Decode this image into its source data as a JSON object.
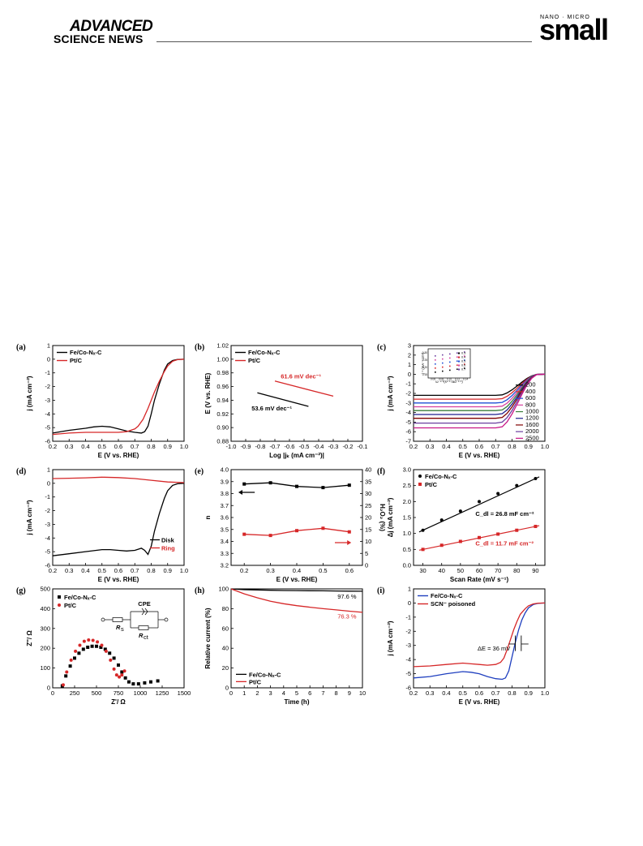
{
  "header": {
    "journal_line1": "ADVANCED",
    "journal_line2": "SCIENCE NEWS",
    "nano_micro": "NANO · MICRO",
    "small": "small"
  },
  "chart_data": [
    {
      "panel": "(a)",
      "type": "line",
      "xlabel": "E (V vs. RHE)",
      "ylabel": "j (mA cm⁻²)",
      "xlim": [
        0.2,
        1.0
      ],
      "ylim": [
        -6,
        1
      ],
      "xticks": [
        "0.2",
        "0.3",
        "0.4",
        "0.5",
        "0.6",
        "0.7",
        "0.8",
        "0.9",
        "1.0"
      ],
      "yticks": [
        "-6",
        "-5",
        "-4",
        "-3",
        "-2",
        "-1",
        "0",
        "1"
      ],
      "legend": [
        "Fe/Co-Nₓ-C",
        "Pt/C"
      ],
      "series": [
        {
          "name": "Fe/Co-Nₓ-C",
          "color": "#000000",
          "x": [
            0.2,
            0.3,
            0.4,
            0.45,
            0.5,
            0.55,
            0.6,
            0.65,
            0.7,
            0.74,
            0.76,
            0.78,
            0.8,
            0.82,
            0.85,
            0.88,
            0.9,
            0.93,
            0.96,
            1.0
          ],
          "y": [
            -5.4,
            -5.2,
            -5.05,
            -4.95,
            -4.9,
            -4.95,
            -5.1,
            -5.25,
            -5.35,
            -5.4,
            -5.3,
            -4.9,
            -4.0,
            -3.0,
            -1.8,
            -0.8,
            -0.35,
            -0.1,
            -0.02,
            0
          ]
        },
        {
          "name": "Pt/C",
          "color": "#d62728",
          "x": [
            0.2,
            0.3,
            0.4,
            0.5,
            0.6,
            0.65,
            0.7,
            0.72,
            0.75,
            0.78,
            0.8,
            0.82,
            0.85,
            0.88,
            0.9,
            0.93,
            0.96,
            1.0
          ],
          "y": [
            -5.5,
            -5.4,
            -5.35,
            -5.35,
            -5.35,
            -5.3,
            -5.1,
            -4.9,
            -4.4,
            -3.6,
            -3.0,
            -2.4,
            -1.6,
            -0.9,
            -0.5,
            -0.15,
            -0.03,
            0
          ]
        }
      ]
    },
    {
      "panel": "(b)",
      "type": "line",
      "xlabel": "Log |jₖ (mA cm⁻²)|",
      "ylabel": "E (V vs. RHE)",
      "xlim": [
        -1.0,
        -0.1
      ],
      "ylim": [
        0.88,
        1.02
      ],
      "xticks": [
        "-1.0",
        "-0.9",
        "-0.8",
        "-0.7",
        "-0.6",
        "-0.5",
        "-0.4",
        "-0.3",
        "-0.2",
        "-0.1"
      ],
      "yticks": [
        "0.88",
        "0.90",
        "0.92",
        "0.94",
        "0.96",
        "0.98",
        "1.00",
        "1.02"
      ],
      "legend": [
        "Fe/Co-Nₓ-C",
        "Pt/C"
      ],
      "annotations": [
        "61.6 mV dec⁻¹",
        "53.6 mV dec⁻¹"
      ],
      "series": [
        {
          "name": "Fe/Co-Nₓ-C",
          "color": "#000000",
          "x": [
            -0.82,
            -0.47
          ],
          "y": [
            0.951,
            0.931
          ]
        },
        {
          "name": "Pt/C",
          "color": "#d62728",
          "x": [
            -0.7,
            -0.3
          ],
          "y": [
            0.968,
            0.946
          ]
        }
      ]
    },
    {
      "panel": "(c)",
      "type": "line",
      "xlabel": "E (V vs. RHE)",
      "ylabel": "j (mA cm⁻²)",
      "xlim": [
        0.2,
        1.0
      ],
      "ylim": [
        -7,
        3
      ],
      "xticks": [
        "0.2",
        "0.3",
        "0.4",
        "0.5",
        "0.6",
        "0.7",
        "0.8",
        "0.9",
        "1.0"
      ],
      "yticks": [
        "-7",
        "-6",
        "-5",
        "-4",
        "-3",
        "-2",
        "-1",
        "0",
        "1",
        "2",
        "3"
      ],
      "legend": [
        "400",
        "600",
        "800",
        "1000",
        "1200",
        "1600",
        "2000",
        "2500"
      ],
      "legend_top": "200",
      "series_plateaus": [
        -2.2,
        -2.6,
        -3.0,
        -3.4,
        -3.8,
        -4.2,
        -4.6,
        -5.1,
        -5.6
      ],
      "series_colors": [
        "#000000",
        "#d62728",
        "#1f4fd6",
        "#d6409f",
        "#3a7d3a",
        "#1f1f8f",
        "#800000",
        "#6b3fa0",
        "#c71585"
      ],
      "inset": {
        "xlabel": "ω⁻¹ᐟ²(s¹ᐟ² rad⁻¹ᐟ²)",
        "ylabel": "j⁻¹ (mA⁻¹ cm²)",
        "legend": [
          "0.3",
          "0.4",
          "0.5",
          "0.6",
          "0.7"
        ],
        "xticks": [
          "0.06",
          "0.08",
          "0.10",
          "0.12",
          "0.14"
        ],
        "yticks": [
          "0.15",
          "0.20",
          "0.25",
          "0.30"
        ]
      }
    },
    {
      "panel": "(d)",
      "type": "line",
      "xlabel": "E (V vs. RHE)",
      "ylabel": "j (mA cm⁻²)",
      "xlim": [
        0.2,
        1.0
      ],
      "ylim": [
        -6,
        1
      ],
      "xticks": [
        "0.2",
        "0.3",
        "0.4",
        "0.5",
        "0.6",
        "0.7",
        "0.8",
        "0.9",
        "1.0"
      ],
      "yticks": [
        "-6",
        "-5",
        "-4",
        "-3",
        "-2",
        "-1",
        "0",
        "1"
      ],
      "legend": [
        "Disk",
        "Ring"
      ],
      "series": [
        {
          "name": "Disk",
          "color": "#000000",
          "x": [
            0.2,
            0.3,
            0.4,
            0.5,
            0.55,
            0.6,
            0.65,
            0.7,
            0.74,
            0.76,
            0.78,
            0.8,
            0.82,
            0.85,
            0.88,
            0.9,
            0.93,
            0.96,
            1.0
          ],
          "y": [
            -5.3,
            -5.15,
            -5.0,
            -4.85,
            -4.85,
            -4.9,
            -4.95,
            -4.9,
            -4.75,
            -4.9,
            -5.2,
            -4.6,
            -3.5,
            -2.2,
            -1.1,
            -0.55,
            -0.15,
            -0.03,
            0
          ]
        },
        {
          "name": "Ring",
          "color": "#d62728",
          "x": [
            0.2,
            0.3,
            0.4,
            0.5,
            0.6,
            0.7,
            0.8,
            0.9,
            1.0
          ],
          "y": [
            0.35,
            0.37,
            0.4,
            0.45,
            0.42,
            0.35,
            0.22,
            0.1,
            0.05
          ]
        }
      ]
    },
    {
      "panel": "(e)",
      "type": "line",
      "xlabel": "E (V vs. RHE)",
      "ylabel": "n",
      "ylabel_right": "H₂O₂ (%)",
      "xlim": [
        0.15,
        0.65
      ],
      "ylim": [
        3.2,
        4.0
      ],
      "ylim_right": [
        0,
        40
      ],
      "xticks": [
        "0.2",
        "0.3",
        "0.4",
        "0.5",
        "0.6"
      ],
      "yticks": [
        "3.2",
        "3.3",
        "3.4",
        "3.5",
        "3.6",
        "3.7",
        "3.8",
        "3.9",
        "4.0"
      ],
      "yticks_right": [
        "0",
        "5",
        "10",
        "15",
        "20",
        "25",
        "30",
        "35",
        "40"
      ],
      "series": [
        {
          "name": "n",
          "color": "#000000",
          "x": [
            0.2,
            0.3,
            0.4,
            0.5,
            0.6
          ],
          "y": [
            3.88,
            3.89,
            3.86,
            3.85,
            3.87
          ]
        },
        {
          "name": "H2O2",
          "color": "#d62728",
          "axis": "right",
          "x": [
            0.2,
            0.3,
            0.4,
            0.5,
            0.6
          ],
          "y": [
            13.0,
            12.5,
            14.5,
            15.5,
            14.0
          ]
        }
      ]
    },
    {
      "panel": "(f)",
      "type": "scatter",
      "xlabel": "Scan Rate (mV s⁻¹)",
      "ylabel": "Δj (mA cm⁻²)",
      "xlim": [
        25,
        95
      ],
      "ylim": [
        0.0,
        3.0
      ],
      "xticks": [
        "30",
        "40",
        "50",
        "60",
        "70",
        "80",
        "90"
      ],
      "yticks": [
        "0.0",
        "0.5",
        "1.0",
        "1.5",
        "2.0",
        "2.5",
        "3.0"
      ],
      "legend": [
        "Fe/Co-Nₓ-C",
        "Pt/C"
      ],
      "annotations": [
        "C_dl = 26.8 mF cm⁻²",
        "C_dl = 11.7 mF cm⁻²"
      ],
      "series": [
        {
          "name": "Fe/Co-Nₓ-C",
          "color": "#000000",
          "x": [
            30,
            40,
            50,
            60,
            70,
            80,
            90
          ],
          "y": [
            1.1,
            1.42,
            1.7,
            2.0,
            2.25,
            2.5,
            2.72
          ]
        },
        {
          "name": "Pt/C",
          "color": "#d62728",
          "x": [
            30,
            40,
            50,
            60,
            70,
            80,
            90
          ],
          "y": [
            0.5,
            0.63,
            0.75,
            0.87,
            0.98,
            1.1,
            1.22
          ]
        }
      ]
    },
    {
      "panel": "(g)",
      "type": "scatter",
      "xlabel": "Z'/ Ω",
      "ylabel": "Z''/ Ω",
      "xlim": [
        0,
        1500
      ],
      "ylim": [
        0,
        500
      ],
      "xticks": [
        "0",
        "250",
        "500",
        "750",
        "1000",
        "1250",
        "1500"
      ],
      "yticks": [
        "0",
        "100",
        "200",
        "300",
        "400",
        "500"
      ],
      "legend": [
        "Fe/Co-Nₓ-C",
        "Pt/C"
      ],
      "circuit": {
        "label_cpe": "CPE",
        "label_rs": "R",
        "label_rs_sub": "s",
        "label_rct": "R",
        "label_rct_sub": "ct"
      },
      "series": [
        {
          "name": "Fe/Co-Nₓ-C",
          "color": "#000000",
          "x": [
            110,
            150,
            200,
            250,
            300,
            350,
            400,
            450,
            500,
            550,
            600,
            650,
            700,
            750,
            790,
            830,
            870,
            920,
            980,
            1050,
            1120,
            1200
          ],
          "y": [
            10,
            60,
            110,
            150,
            175,
            195,
            205,
            210,
            210,
            205,
            195,
            175,
            150,
            115,
            80,
            50,
            30,
            20,
            20,
            25,
            30,
            35
          ]
        },
        {
          "name": "Pt/C",
          "color": "#d62728",
          "x": [
            120,
            160,
            210,
            260,
            310,
            360,
            410,
            460,
            510,
            560,
            610,
            660,
            700,
            730,
            760,
            790,
            820
          ],
          "y": [
            15,
            80,
            140,
            185,
            215,
            235,
            242,
            240,
            232,
            215,
            185,
            140,
            95,
            65,
            55,
            65,
            85
          ]
        }
      ]
    },
    {
      "panel": "(h)",
      "type": "line",
      "xlabel": "Time (h)",
      "ylabel": "Relative current (%)",
      "xlim": [
        0,
        10
      ],
      "ylim": [
        0,
        100
      ],
      "xticks": [
        "0",
        "1",
        "2",
        "3",
        "4",
        "5",
        "6",
        "7",
        "8",
        "9",
        "10"
      ],
      "yticks": [
        "0",
        "20",
        "40",
        "60",
        "80",
        "100"
      ],
      "legend": [
        "Fe/Co-Nₓ-C",
        "Pt/C"
      ],
      "annotations": [
        "97.6 %",
        "76.3 %"
      ],
      "series": [
        {
          "name": "Fe/Co-Nₓ-C",
          "color": "#000000",
          "x": [
            0,
            1,
            2,
            3,
            4,
            5,
            6,
            7,
            8,
            9,
            10
          ],
          "y": [
            100,
            99.2,
            98.9,
            98.6,
            98.4,
            98.3,
            98.1,
            98.0,
            97.9,
            97.7,
            97.6
          ]
        },
        {
          "name": "Pt/C",
          "color": "#d62728",
          "x": [
            0,
            1,
            2,
            3,
            4,
            5,
            6,
            7,
            8,
            9,
            10
          ],
          "y": [
            100,
            95,
            91,
            87.5,
            85,
            83,
            81.5,
            80,
            78.8,
            77.5,
            76.3
          ]
        }
      ]
    },
    {
      "panel": "(i)",
      "type": "line",
      "xlabel": "E (V vs. RHE)",
      "ylabel": "j (mA cm⁻²)",
      "xlim": [
        0.2,
        1.0
      ],
      "ylim": [
        -6,
        1
      ],
      "xticks": [
        "0.2",
        "0.3",
        "0.4",
        "0.5",
        "0.6",
        "0.7",
        "0.8",
        "0.9",
        "1.0"
      ],
      "yticks": [
        "-6",
        "-5",
        "-4",
        "-3",
        "-2",
        "-1",
        "0",
        "1"
      ],
      "legend": [
        "Fe/Co-Nₓ-C",
        "SCN⁻ poisoned"
      ],
      "annotations": [
        "ΔE = 36 mV"
      ],
      "series": [
        {
          "name": "Fe/Co-Nₓ-C",
          "color": "#1f3fbf",
          "x": [
            0.2,
            0.3,
            0.4,
            0.5,
            0.55,
            0.6,
            0.65,
            0.7,
            0.74,
            0.76,
            0.78,
            0.8,
            0.82,
            0.84,
            0.86,
            0.88,
            0.9,
            0.93,
            0.96,
            1.0
          ],
          "y": [
            -5.3,
            -5.2,
            -5.0,
            -4.85,
            -4.9,
            -5.0,
            -5.2,
            -5.35,
            -5.4,
            -5.3,
            -4.8,
            -3.8,
            -2.8,
            -1.9,
            -1.2,
            -0.7,
            -0.35,
            -0.1,
            -0.02,
            0
          ]
        },
        {
          "name": "SCN⁻ poisoned",
          "color": "#d62728",
          "x": [
            0.2,
            0.3,
            0.4,
            0.5,
            0.55,
            0.6,
            0.65,
            0.7,
            0.73,
            0.75,
            0.77,
            0.79,
            0.81,
            0.83,
            0.85,
            0.88,
            0.9,
            0.93,
            0.96,
            1.0
          ],
          "y": [
            -4.5,
            -4.45,
            -4.35,
            -4.25,
            -4.3,
            -4.35,
            -4.4,
            -4.35,
            -4.2,
            -3.9,
            -3.3,
            -2.6,
            -1.9,
            -1.3,
            -0.8,
            -0.4,
            -0.2,
            -0.06,
            -0.01,
            0
          ]
        }
      ]
    }
  ]
}
